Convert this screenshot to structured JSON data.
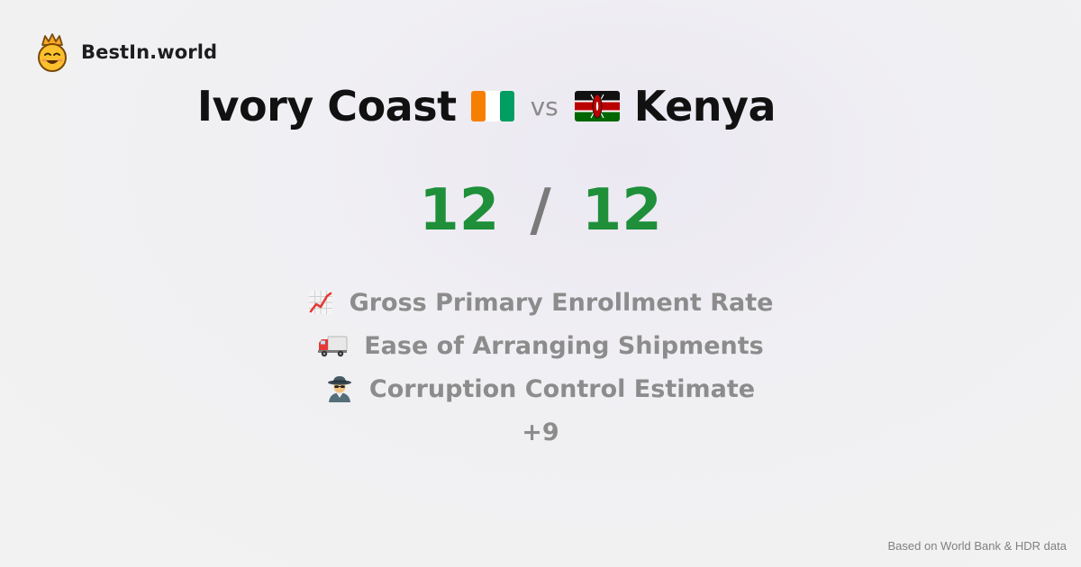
{
  "brand": {
    "name": "BestIn.world",
    "logo_icon": "crown-smiley-icon"
  },
  "title": {
    "country_a": "Ivory Coast",
    "country_a_flag": "ivory-coast-flag-icon",
    "vs": "vs",
    "country_b": "Kenya",
    "country_b_flag": "kenya-flag-icon"
  },
  "score": {
    "a": "12",
    "separator": "/",
    "b": "12",
    "color": "#1f8f3a"
  },
  "metrics": [
    {
      "icon": "chart-increasing-icon",
      "label": "Gross Primary Enrollment Rate"
    },
    {
      "icon": "delivery-truck-icon",
      "label": "Ease of Arranging Shipments"
    },
    {
      "icon": "detective-icon",
      "label": "Corruption Control Estimate"
    }
  ],
  "more": "+9",
  "footer": "Based on World Bank & HDR data"
}
